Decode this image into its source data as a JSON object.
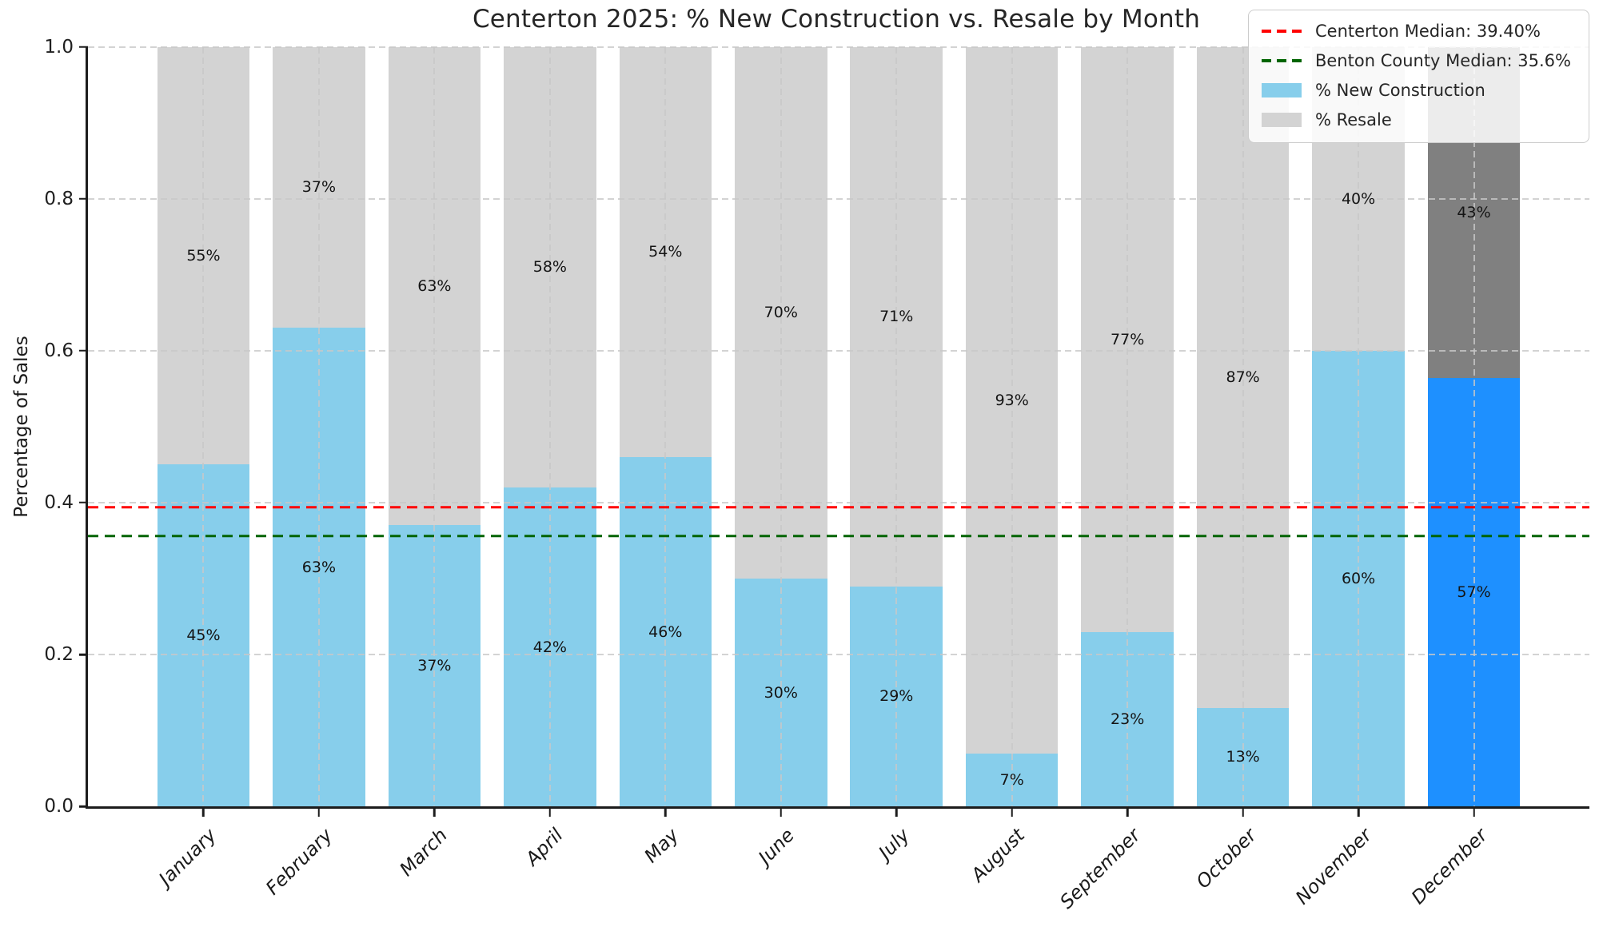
{
  "title": "Centerton 2025: % New Construction vs. Resale by Month",
  "y_axis": {
    "label": "Percentage of Sales",
    "ticks": [
      {
        "label": "0.0",
        "value": 0.0
      },
      {
        "label": "0.2",
        "value": 0.2
      },
      {
        "label": "0.4",
        "value": 0.4
      },
      {
        "label": "0.6",
        "value": 0.6
      },
      {
        "label": "0.8",
        "value": 0.8
      },
      {
        "label": "1.0",
        "value": 1.0
      }
    ]
  },
  "legend": {
    "items": [
      {
        "type": "line",
        "color": "#ff0000",
        "label": "Centerton Median: 39.40%"
      },
      {
        "type": "line",
        "color": "#006400",
        "label": "Benton County Median: 35.6%"
      },
      {
        "type": "patch",
        "color": "#87CEEB",
        "label": "% New Construction"
      },
      {
        "type": "patch",
        "color": "#D3D3D3",
        "label": "% Resale"
      }
    ]
  },
  "chart_data": {
    "type": "bar",
    "stacked": true,
    "title": "Centerton 2025: % New Construction vs. Resale by Month",
    "ylabel": "Percentage of Sales",
    "xlabel": "",
    "ylim": [
      0,
      1
    ],
    "grid": true,
    "legend_position": "upper right",
    "categories": [
      "January",
      "February",
      "March",
      "April",
      "May",
      "June",
      "July",
      "August",
      "September",
      "October",
      "November",
      "December"
    ],
    "series": [
      {
        "name": "% New Construction",
        "values": [
          45,
          63,
          37,
          42,
          46,
          30,
          29,
          7,
          23,
          13,
          60,
          57
        ]
      },
      {
        "name": "% Resale",
        "values": [
          55,
          37,
          63,
          58,
          54,
          70,
          71,
          93,
          77,
          87,
          40,
          43
        ]
      }
    ],
    "bars": [
      {
        "month": "January",
        "new_construction": 45,
        "resale": 55,
        "new_label": "45%",
        "resale_label": "55%",
        "highlight": false
      },
      {
        "month": "February",
        "new_construction": 63,
        "resale": 37,
        "new_label": "63%",
        "resale_label": "37%",
        "highlight": false
      },
      {
        "month": "March",
        "new_construction": 37,
        "resale": 63,
        "new_label": "37%",
        "resale_label": "63%",
        "highlight": false
      },
      {
        "month": "April",
        "new_construction": 42,
        "resale": 58,
        "new_label": "42%",
        "resale_label": "58%",
        "highlight": false
      },
      {
        "month": "May",
        "new_construction": 46,
        "resale": 54,
        "new_label": "46%",
        "resale_label": "54%",
        "highlight": false
      },
      {
        "month": "June",
        "new_construction": 30,
        "resale": 70,
        "new_label": "30%",
        "resale_label": "70%",
        "highlight": false
      },
      {
        "month": "July",
        "new_construction": 29,
        "resale": 71,
        "new_label": "29%",
        "resale_label": "71%",
        "highlight": false
      },
      {
        "month": "August",
        "new_construction": 7,
        "resale": 93,
        "new_label": "7%",
        "resale_label": "93%",
        "highlight": false
      },
      {
        "month": "September",
        "new_construction": 23,
        "resale": 77,
        "new_label": "23%",
        "resale_label": "77%",
        "highlight": false
      },
      {
        "month": "October",
        "new_construction": 13,
        "resale": 87,
        "new_label": "13%",
        "resale_label": "87%",
        "highlight": false
      },
      {
        "month": "November",
        "new_construction": 60,
        "resale": 40,
        "new_label": "60%",
        "resale_label": "40%",
        "highlight": false
      },
      {
        "month": "December",
        "new_construction": 57,
        "resale": 43,
        "new_label": "57%",
        "resale_label": "43%",
        "highlight": true,
        "new_height_pct": 56.4
      }
    ],
    "reference_lines": [
      {
        "name": "Centerton Median",
        "value": 0.394,
        "display": "39.40%",
        "color": "#ff0000",
        "style": "dashed"
      },
      {
        "name": "Benton County Median",
        "value": 0.356,
        "display": "35.6%",
        "color": "#006400",
        "style": "dashed"
      }
    ],
    "colors": {
      "new_construction": "#87CEEB",
      "resale": "#D3D3D3",
      "new_construction_highlight": "#1E90FF",
      "resale_highlight": "#808080",
      "grid": "#c8c8c8"
    }
  }
}
